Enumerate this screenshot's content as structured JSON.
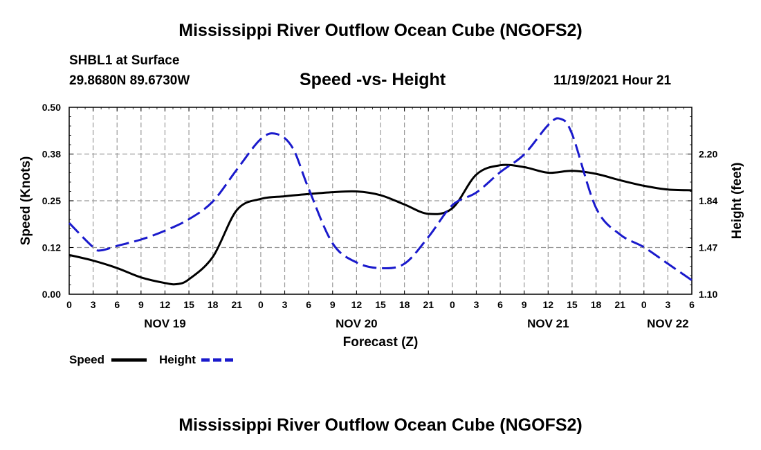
{
  "page_title": "Mississippi River Outflow Ocean Cube (NGOFS2)",
  "station": "SHBL1 at Surface",
  "coordinates": "29.8680N  89.6730W",
  "forecast_time": "11/19/2021 Hour 21",
  "repeated_title": "Mississippi River Outflow Ocean Cube (NGOFS2)",
  "colors": {
    "speed": "#000000",
    "height": "#1a1acc",
    "grid": "#999999"
  },
  "chart_data": {
    "type": "line",
    "title": "Speed -vs- Height",
    "xlabel": "Forecast (Z)",
    "ylabel": "Speed (Knots)",
    "y2label": "Height (feet)",
    "xlim": [
      0,
      78
    ],
    "ylim": [
      0,
      0.5
    ],
    "y2lim": [
      1.1,
      2.57
    ],
    "grid": true,
    "x_tick_labels": [
      "0",
      "3",
      "6",
      "9",
      "12",
      "15",
      "18",
      "21",
      "0",
      "3",
      "6",
      "9",
      "12",
      "15",
      "18",
      "21",
      "0",
      "3",
      "6",
      "9",
      "12",
      "15",
      "18",
      "21",
      "0",
      "3",
      "6"
    ],
    "day_labels": [
      {
        "x": 12,
        "label": "NOV 19"
      },
      {
        "x": 36,
        "label": "NOV 20"
      },
      {
        "x": 60,
        "label": "NOV 21"
      },
      {
        "x": 75,
        "label": "NOV 22"
      }
    ],
    "y_tick_labels": [
      "0.00",
      "0.12",
      "0.25",
      "0.38",
      "0.50"
    ],
    "y2_tick_labels": [
      "1.10",
      "1.47",
      "1.84",
      "2.20"
    ],
    "legend_position": "bottom-left",
    "series": [
      {
        "name": "Speed",
        "axis": "left",
        "style": "solid",
        "x": [
          0,
          3,
          6,
          9,
          12,
          13.5,
          15,
          18,
          21,
          24,
          27,
          30,
          33,
          36,
          39,
          42,
          45,
          48,
          51,
          54,
          57,
          60,
          63,
          66,
          69,
          72,
          75,
          78
        ],
        "values": [
          0.105,
          0.09,
          0.07,
          0.045,
          0.03,
          0.027,
          0.04,
          0.1,
          0.225,
          0.255,
          0.262,
          0.268,
          0.273,
          0.275,
          0.265,
          0.24,
          0.215,
          0.23,
          0.32,
          0.345,
          0.34,
          0.325,
          0.33,
          0.322,
          0.305,
          0.29,
          0.28,
          0.278
        ]
      },
      {
        "name": "Height",
        "axis": "right",
        "style": "dashed",
        "x": [
          0,
          3,
          4,
          6,
          9,
          12,
          15,
          18,
          21,
          24,
          26,
          28,
          30,
          33,
          36,
          39,
          42,
          45,
          48,
          51,
          54,
          57,
          60,
          61.5,
          63,
          66,
          69,
          72,
          75,
          78
        ],
        "values": [
          1.66,
          1.47,
          1.445,
          1.48,
          1.53,
          1.6,
          1.69,
          1.83,
          2.08,
          2.32,
          2.36,
          2.25,
          1.93,
          1.5,
          1.35,
          1.305,
          1.34,
          1.55,
          1.8,
          1.9,
          2.06,
          2.2,
          2.43,
          2.48,
          2.36,
          1.78,
          1.57,
          1.47,
          1.34,
          1.21
        ]
      }
    ]
  }
}
